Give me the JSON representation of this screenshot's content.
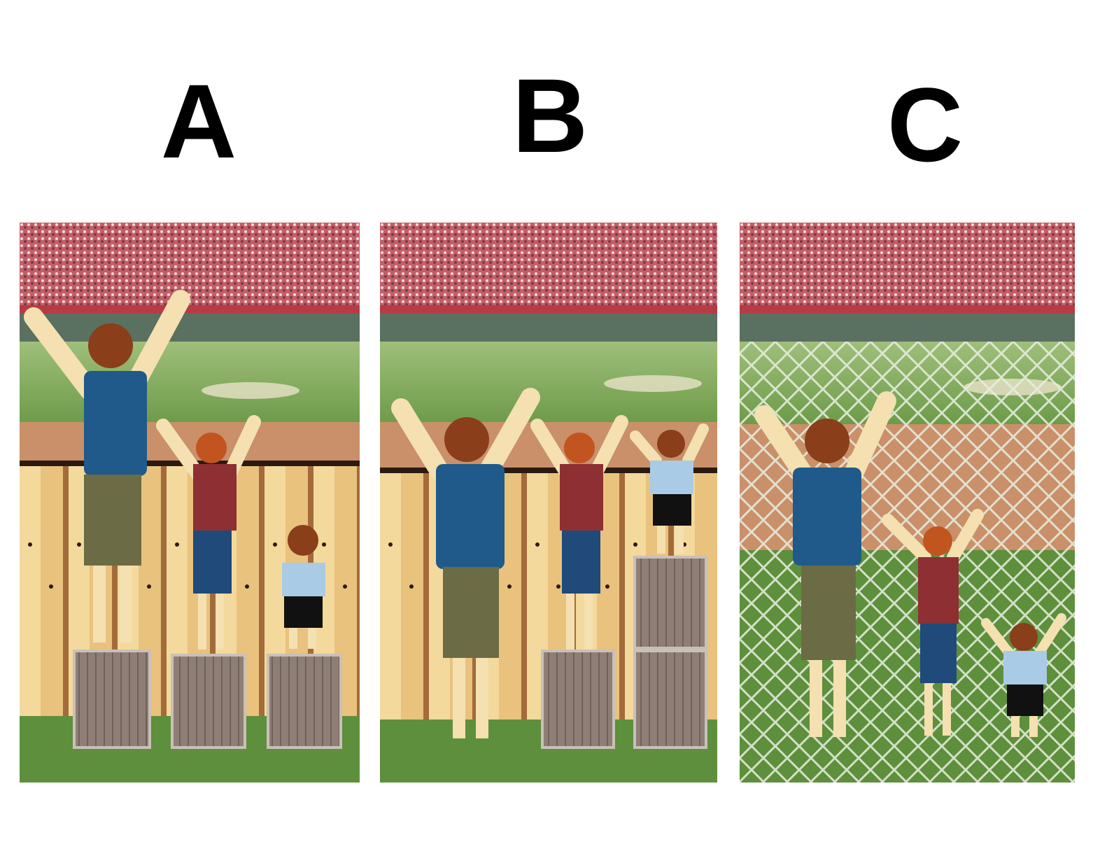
{
  "labels": {
    "a": "A",
    "b": "B",
    "c": "C"
  },
  "colors": {
    "crowd_red": "#c75a63",
    "field_green": "#6e9a4a",
    "dirt": "#c9906a",
    "shirt_blue": "#1f5a8a",
    "shirt_red": "#8e2f33",
    "shirt_light": "#a9cbe6",
    "skin": "#f4e0b0",
    "hair": "#8a3e1a"
  },
  "panels": [
    {
      "key": "a",
      "boxes_per_person": [
        1,
        1,
        1
      ]
    },
    {
      "key": "b",
      "boxes_per_person": [
        0,
        1,
        2
      ]
    },
    {
      "key": "c",
      "boxes_per_person": [
        0,
        0,
        0
      ]
    }
  ]
}
